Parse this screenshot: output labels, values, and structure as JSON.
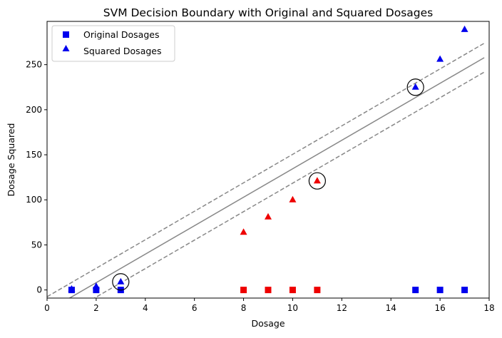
{
  "chart_data": {
    "type": "scatter",
    "title": "SVM Decision Boundary with Original and Squared Dosages",
    "xlabel": "Dosage",
    "ylabel": "Dosage Squared",
    "xlim": [
      0,
      18
    ],
    "ylim": [
      -9,
      298
    ],
    "xticks": [
      0,
      2,
      4,
      6,
      8,
      10,
      12,
      14,
      16,
      18
    ],
    "yticks": [
      0,
      50,
      100,
      150,
      200,
      250
    ],
    "grid": false,
    "legend": {
      "placement": "top-left",
      "entries": [
        {
          "label": "Original Dosages",
          "marker": "square",
          "color": "#0000ee"
        },
        {
          "label": "Squared Dosages",
          "marker": "triangle",
          "color": "#0000ee"
        }
      ]
    },
    "colors": {
      "class_blue": "#0000ee",
      "class_red": "#ee0000",
      "boundary": "#888888",
      "support_vector_ring": "#000000"
    },
    "series": [
      {
        "marker": "square",
        "points": [
          {
            "x": 1,
            "y": 0,
            "class": "blue"
          },
          {
            "x": 2,
            "y": 0,
            "class": "blue"
          },
          {
            "x": 3,
            "y": 0,
            "class": "blue"
          },
          {
            "x": 8,
            "y": 0,
            "class": "red"
          },
          {
            "x": 9,
            "y": 0,
            "class": "red"
          },
          {
            "x": 10,
            "y": 0,
            "class": "red"
          },
          {
            "x": 11,
            "y": 0,
            "class": "red"
          },
          {
            "x": 15,
            "y": 0,
            "class": "blue"
          },
          {
            "x": 16,
            "y": 0,
            "class": "blue"
          },
          {
            "x": 17,
            "y": 0,
            "class": "blue"
          }
        ]
      },
      {
        "marker": "triangle",
        "points": [
          {
            "x": 1,
            "y": 1,
            "class": "blue"
          },
          {
            "x": 2,
            "y": 4,
            "class": "blue"
          },
          {
            "x": 3,
            "y": 9,
            "class": "blue"
          },
          {
            "x": 8,
            "y": 64,
            "class": "red"
          },
          {
            "x": 9,
            "y": 81,
            "class": "red"
          },
          {
            "x": 10,
            "y": 100,
            "class": "red"
          },
          {
            "x": 11,
            "y": 121,
            "class": "red"
          },
          {
            "x": 15,
            "y": 225,
            "class": "blue"
          },
          {
            "x": 16,
            "y": 256,
            "class": "blue"
          },
          {
            "x": 17,
            "y": 289,
            "class": "blue"
          }
        ]
      }
    ],
    "decision_boundary": {
      "slope": 15.8,
      "intercept": -23.5,
      "margin_offset": 16.0,
      "x_range": [
        0,
        17.8
      ]
    },
    "support_vectors": [
      {
        "x": 3,
        "y": 9
      },
      {
        "x": 11,
        "y": 121
      },
      {
        "x": 15,
        "y": 225
      }
    ]
  }
}
